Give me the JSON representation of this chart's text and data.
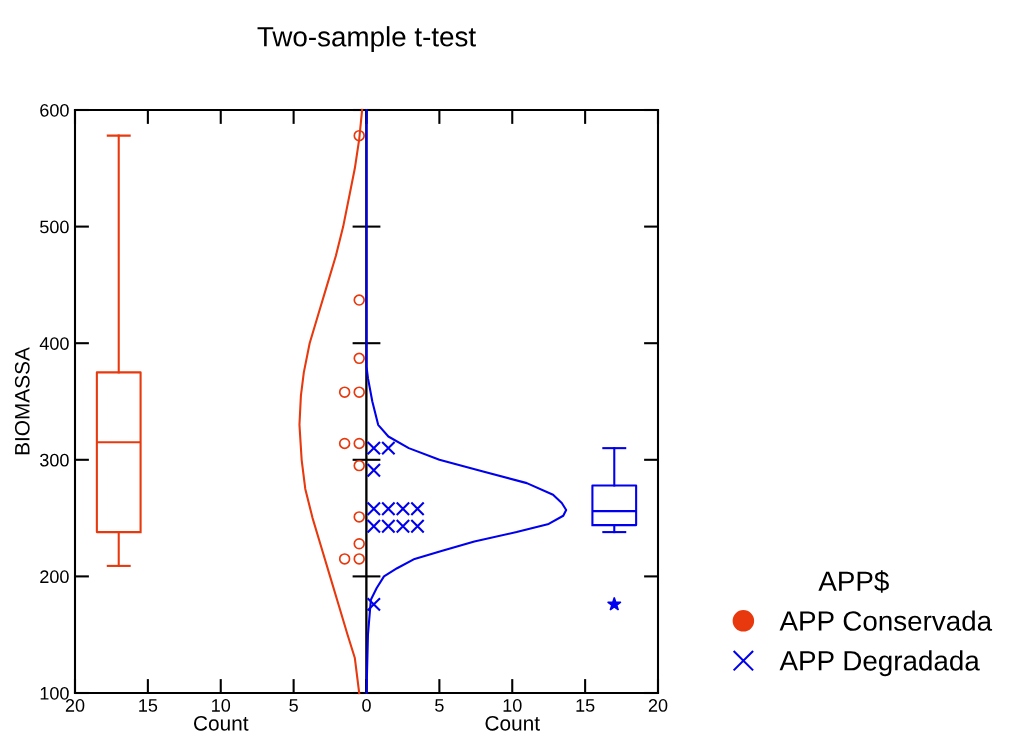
{
  "chart_data": [
    {
      "type": "box",
      "title": "Two-sample t-test",
      "xlabel": "Count",
      "ylabel": "BIOMASSA",
      "xlim": [
        20,
        0
      ],
      "xticks": [
        20,
        15,
        10,
        5,
        {
          "value": 0,
          "label": null
        }
      ],
      "ylim": [
        100,
        600
      ],
      "yticks": [
        100,
        200,
        300,
        400,
        500,
        600
      ],
      "series": [
        {
          "type": "line",
          "color": "#e8380d",
          "x": [
            0.5,
            0.8,
            1.3,
            1.9,
            2.5,
            3.1,
            3.7,
            4.2,
            4.45,
            4.6,
            4.5,
            4.3,
            3.9,
            3.3,
            2.7,
            2.1,
            1.6,
            1.2,
            0.8,
            0.5,
            0.3
          ],
          "values": [
            100,
            130,
            150,
            175,
            200,
            225,
            250,
            275,
            300,
            330,
            355,
            375,
            400,
            425,
            450,
            475,
            500,
            525,
            550,
            575,
            600
          ]
        },
        {
          "type": "scatter",
          "name": "APP Conservada",
          "color": "#e8380d",
          "marker": "circle",
          "x": [
            0.5,
            0.5,
            0.5,
            0.5,
            1.5,
            0.5,
            1.5,
            0.5,
            0.5,
            0.5,
            0.5,
            1.5
          ],
          "values": [
            578,
            437,
            387,
            358,
            358,
            314,
            314,
            295,
            251,
            228,
            215,
            215
          ]
        },
        {
          "color": "#e8380d",
          "x": [
            17
          ],
          "boxes": [
            {
              "low": 209,
              "q1": 238,
              "median": 315,
              "q3": 375,
              "high": 578
            }
          ]
        }
      ]
    },
    {
      "type": "box",
      "xlabel": "Count",
      "xlim": [
        0,
        20
      ],
      "xticks": [
        0,
        5,
        10,
        15,
        20
      ],
      "ylim": [
        100,
        600
      ],
      "yticks": [
        100,
        200,
        300,
        400,
        500,
        600
      ],
      "tick_labels": "x",
      "legend": "right",
      "legend_title": "APP$",
      "series": [
        {
          "type": "line",
          "color": "#0000ee",
          "x": [
            0,
            0.1,
            0.3,
            0.7,
            1.2,
            2.1,
            3.3,
            5.2,
            7.4,
            10.3,
            12.5,
            13.5,
            13.7,
            13.4,
            12.8,
            11,
            8,
            5,
            2.9,
            1.5,
            0.8,
            0.4,
            0.1,
            0,
            0
          ],
          "values": [
            100,
            150,
            180,
            190,
            200,
            207,
            215,
            222,
            230,
            238,
            245,
            252,
            257,
            263,
            270,
            280,
            290,
            300,
            310,
            320,
            330,
            350,
            370,
            380,
            600
          ]
        },
        {
          "type": "scatter",
          "name": "APP Degradada",
          "color": "#0000ee",
          "marker": "cross",
          "x": [
            0.5,
            1.5,
            0.5,
            0.5,
            1.5,
            2.5,
            3.5,
            0.5,
            1.5,
            2.5,
            3.5,
            0.5
          ],
          "values": [
            310,
            310,
            291,
            258,
            258,
            258,
            258,
            243,
            243,
            243,
            243,
            176
          ]
        },
        {
          "color": "#0000ee",
          "marker": "star",
          "x": [
            17
          ],
          "boxes": [
            {
              "low": 238,
              "q1": 244,
              "median": 256,
              "q3": 278,
              "high": 310,
              "outliers": [
                176
              ]
            }
          ]
        }
      ]
    }
  ]
}
